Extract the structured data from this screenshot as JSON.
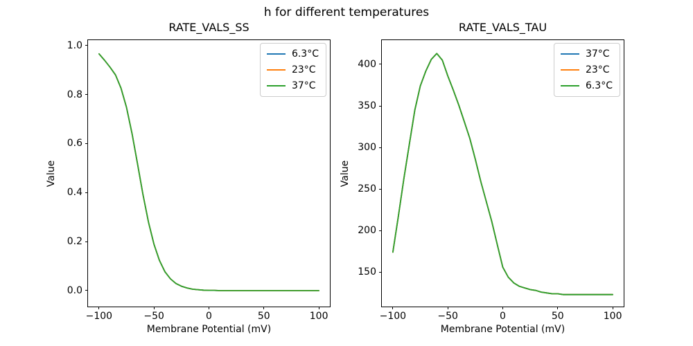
{
  "figure": {
    "suptitle": "h for different temperatures",
    "background": "#ffffff",
    "text_color": "#000000"
  },
  "chart_data": [
    {
      "type": "line",
      "title": "RATE_VALS_SS",
      "xlabel": "Membrane Potential (mV)",
      "ylabel": "Value",
      "xlim": [
        -110,
        110
      ],
      "ylim": [
        -0.065,
        1.022
      ],
      "grid": false,
      "legend_position": "upper right",
      "note": "three temperature curves are identical and overlap exactly (green drawn last)",
      "xticks": [
        -100,
        -50,
        0,
        50,
        100
      ],
      "xtick_labels": [
        "−100",
        "−50",
        "0",
        "50",
        "100"
      ],
      "yticks": [
        0.0,
        0.2,
        0.4,
        0.6,
        0.8,
        1.0
      ],
      "ytick_labels": [
        "0.0",
        "0.2",
        "0.4",
        "0.6",
        "0.8",
        "1.0"
      ],
      "legend": [
        {
          "label": "6.3°C",
          "color": "#1f77b4"
        },
        {
          "label": "23°C",
          "color": "#ff7f0e"
        },
        {
          "label": "37°C",
          "color": "#2ca02c"
        }
      ],
      "x": [
        -100,
        -95,
        -90,
        -85,
        -80,
        -75,
        -70,
        -65,
        -60,
        -55,
        -50,
        -45,
        -40,
        -35,
        -30,
        -25,
        -20,
        -15,
        -10,
        -5,
        0,
        5,
        10,
        15,
        20,
        25,
        30,
        35,
        40,
        45,
        50,
        55,
        60,
        65,
        70,
        75,
        80,
        85,
        90,
        95,
        100
      ],
      "shared_values": [
        0.966,
        0.94,
        0.912,
        0.88,
        0.826,
        0.748,
        0.641,
        0.518,
        0.392,
        0.279,
        0.189,
        0.123,
        0.077,
        0.048,
        0.029,
        0.018,
        0.011,
        0.006,
        0.004,
        0.002,
        0.001,
        0.001,
        0,
        0,
        0,
        0,
        0,
        0,
        0,
        0,
        0,
        0,
        0,
        0,
        0,
        0,
        0,
        0,
        0,
        0,
        0
      ]
    },
    {
      "type": "line",
      "title": "RATE_VALS_TAU",
      "xlabel": "Membrane Potential (mV)",
      "ylabel": "Value",
      "xlim": [
        -110,
        110
      ],
      "ylim": [
        108.6,
        429.1
      ],
      "grid": false,
      "legend_position": "upper right",
      "note": "three temperature curves are identical and overlap exactly (green drawn last); peak ≈413 near −60 mV, plateau ≈123",
      "xticks": [
        -100,
        -50,
        0,
        50,
        100
      ],
      "xtick_labels": [
        "−100",
        "−50",
        "0",
        "50",
        "100"
      ],
      "yticks": [
        150,
        200,
        250,
        300,
        350,
        400
      ],
      "ytick_labels": [
        "150",
        "200",
        "250",
        "300",
        "350",
        "400"
      ],
      "legend": [
        {
          "label": "37°C",
          "color": "#1f77b4"
        },
        {
          "label": "23°C",
          "color": "#ff7f0e"
        },
        {
          "label": "6.3°C",
          "color": "#2ca02c"
        }
      ],
      "x": [
        -100,
        -95,
        -90,
        -85,
        -80,
        -75,
        -70,
        -65,
        -60,
        -55,
        -50,
        -45,
        -40,
        -35,
        -30,
        -25,
        -20,
        -15,
        -10,
        -5,
        0,
        5,
        10,
        15,
        20,
        25,
        30,
        35,
        40,
        45,
        50,
        55,
        60,
        65,
        70,
        75,
        80,
        85,
        90,
        95,
        100
      ],
      "shared_values": [
        174,
        217,
        262,
        304,
        345,
        374,
        392,
        406,
        413,
        405,
        386,
        369,
        351,
        331,
        311,
        286,
        259,
        235,
        211,
        183,
        156,
        144,
        137,
        133,
        131,
        129,
        128,
        126,
        125,
        124,
        124,
        123,
        123,
        123,
        123,
        123,
        123,
        123,
        123,
        123,
        123
      ]
    }
  ]
}
